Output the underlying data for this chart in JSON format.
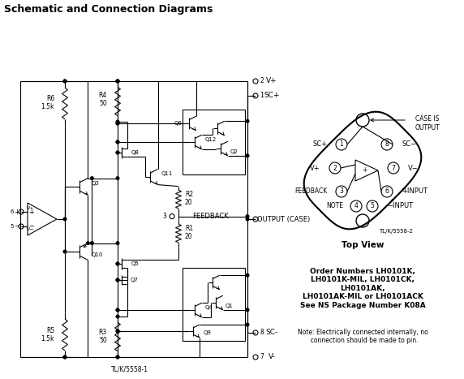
{
  "title": "Schematic and Connection Diagrams",
  "title_fontsize": 9,
  "title_fontweight": "bold",
  "bg_color": "#ffffff",
  "line_color": "#000000",
  "line_width": 0.8,
  "tlk_label1": "TL/K/5558-1",
  "tlk_label2": "TL/K/5558-2",
  "top_view_label": "Top View",
  "order_text": "Order Numbers LH0101K,\nLH0101K-MIL, LH0101CK,\nLH0101AK,\nLH0101AK-MIL or LH0101ACK\nSee NS Package Number K08A",
  "note_text": "Note: Electrically connected internally, no\n  connection should be made to pin."
}
